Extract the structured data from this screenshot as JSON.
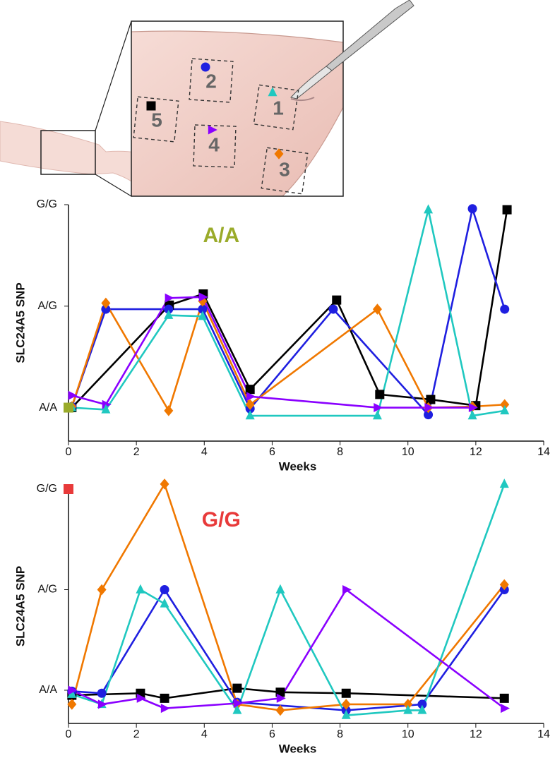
{
  "illustration": {
    "sites": [
      {
        "label": "1",
        "color": "#20c8c0",
        "marker": "triangle-up"
      },
      {
        "label": "2",
        "color": "#1f1fe0",
        "marker": "circle"
      },
      {
        "label": "3",
        "color": "#f07800",
        "marker": "diamond"
      },
      {
        "label": "4",
        "color": "#8a00ff",
        "marker": "triangle-right"
      },
      {
        "label": "5",
        "color": "#000000",
        "marker": "square"
      }
    ]
  },
  "chart_data": [
    {
      "type": "line",
      "annotation": "A/A",
      "annotation_color": "#9aab2a",
      "genotype_marker": {
        "value": 0,
        "color": "#9aab2a"
      },
      "x_label": "Weeks",
      "y_label": "SLC24A5 SNP",
      "xlim": [
        0,
        14
      ],
      "xticks": [
        0,
        2,
        4,
        6,
        8,
        10,
        12,
        14
      ],
      "ylim": [
        -0.33,
        2
      ],
      "yticks": [
        {
          "value": 0,
          "label": "A/A"
        },
        {
          "value": 1,
          "label": "A/G"
        },
        {
          "value": 2,
          "label": "G/G"
        }
      ],
      "series": [
        {
          "color": "#000000",
          "marker": "square",
          "x": [
            0.1,
            2.97,
            3.97,
            5.35,
            7.9,
            9.17,
            10.67,
            12.0,
            12.92
          ],
          "values": [
            0,
            1.01,
            1.12,
            0.18,
            1.06,
            0.13,
            0.08,
            0.02,
            1.95
          ]
        },
        {
          "color": "#1f1fe0",
          "marker": "circle",
          "x": [
            0.1,
            1.1,
            2.95,
            3.95,
            5.35,
            7.8,
            10.6,
            11.9,
            12.85
          ],
          "values": [
            0.01,
            0.97,
            0.97,
            0.97,
            -0.01,
            0.97,
            -0.07,
            1.96,
            0.97
          ]
        },
        {
          "color": "#f07800",
          "marker": "diamond",
          "x": [
            0.1,
            1.1,
            2.95,
            3.95,
            5.35,
            9.1,
            10.6,
            11.9,
            12.85
          ],
          "values": [
            0.01,
            1.03,
            -0.03,
            1.05,
            0.03,
            0.97,
            0,
            0.01,
            0.03
          ]
        },
        {
          "color": "#8a00ff",
          "marker": "triangle-right",
          "x": [
            0.1,
            1.1,
            2.95,
            3.95,
            5.35,
            9.1,
            10.6,
            11.9
          ],
          "values": [
            0.12,
            0.03,
            1.08,
            1.09,
            0.11,
            0,
            0,
            0
          ]
        },
        {
          "color": "#20c8c0",
          "marker": "triangle-up",
          "x": [
            0.1,
            1.1,
            2.95,
            3.95,
            5.35,
            9.1,
            10.6,
            11.9,
            12.85
          ],
          "values": [
            0,
            -0.02,
            0.91,
            0.9,
            -0.08,
            -0.08,
            1.95,
            -0.08,
            -0.03
          ]
        }
      ]
    },
    {
      "type": "line",
      "annotation": "G/G",
      "annotation_color": "#e83a3a",
      "genotype_marker": {
        "value": 2,
        "color": "#e83a3a"
      },
      "x_label": "Weeks",
      "y_label": "SLC24A5 SNP",
      "xlim": [
        0,
        14
      ],
      "xticks": [
        0,
        2,
        4,
        6,
        8,
        10,
        12,
        14
      ],
      "ylim": [
        -0.33,
        2
      ],
      "yticks": [
        {
          "value": 0,
          "label": "A/A"
        },
        {
          "value": 1,
          "label": "A/G"
        },
        {
          "value": 2,
          "label": "G/G"
        }
      ],
      "series": [
        {
          "color": "#000000",
          "marker": "square",
          "x": [
            0.1,
            2.12,
            2.83,
            4.97,
            6.24,
            8.18,
            12.84
          ],
          "values": [
            -0.05,
            -0.03,
            -0.08,
            0.02,
            -0.02,
            -0.03,
            -0.08
          ]
        },
        {
          "color": "#1f1fe0",
          "marker": "circle",
          "x": [
            0.1,
            0.98,
            2.83,
            4.97,
            8.18,
            10.42,
            12.84
          ],
          "values": [
            -0.01,
            -0.03,
            1.0,
            -0.12,
            -0.2,
            -0.14,
            1.0
          ]
        },
        {
          "color": "#f07800",
          "marker": "diamond",
          "x": [
            0.1,
            0.98,
            2.83,
            4.97,
            6.24,
            8.18,
            10.0,
            12.84
          ],
          "values": [
            -0.14,
            1.0,
            2.05,
            -0.14,
            -0.2,
            -0.14,
            -0.14,
            1.05
          ]
        },
        {
          "color": "#20c8c0",
          "marker": "triangle-up",
          "x": [
            0.1,
            0.98,
            2.12,
            2.83,
            4.97,
            6.24,
            8.18,
            10.0,
            10.42,
            12.84
          ],
          "values": [
            -0.04,
            -0.14,
            1.0,
            0.86,
            -0.2,
            1.0,
            -0.25,
            -0.2,
            -0.2,
            2.05
          ]
        },
        {
          "color": "#8a00ff",
          "marker": "triangle-right",
          "x": [
            0.1,
            0.98,
            2.12,
            2.83,
            4.97,
            6.24,
            8.18,
            12.84
          ],
          "values": [
            0,
            -0.14,
            -0.08,
            -0.18,
            -0.13,
            -0.08,
            1.0,
            -0.18
          ]
        }
      ]
    }
  ]
}
